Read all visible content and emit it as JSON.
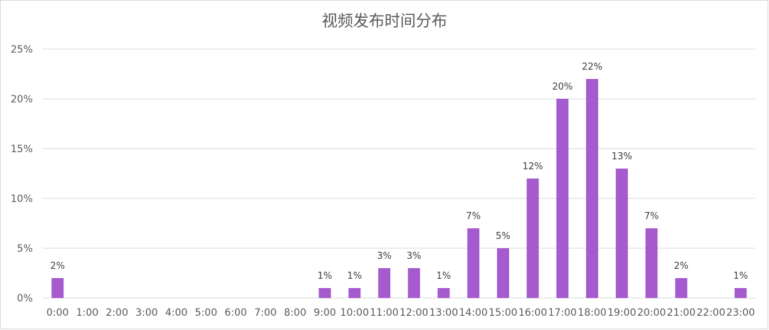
{
  "chart_data": {
    "type": "bar",
    "title": "视频发布时间分布",
    "xlabel": "",
    "ylabel": "",
    "categories": [
      "0:00",
      "1:00",
      "2:00",
      "3:00",
      "4:00",
      "5:00",
      "6:00",
      "7:00",
      "8:00",
      "9:00",
      "10:00",
      "11:00",
      "12:00",
      "13:00",
      "14:00",
      "15:00",
      "16:00",
      "17:00",
      "18:00",
      "19:00",
      "20:00",
      "21:00",
      "22:00",
      "23:00"
    ],
    "values": [
      2,
      0,
      0,
      0,
      0,
      0,
      0,
      0,
      0,
      1,
      1,
      3,
      3,
      1,
      7,
      5,
      12,
      20,
      22,
      13,
      7,
      2,
      0,
      1
    ],
    "data_labels": [
      "2%",
      "",
      "",
      "",
      "",
      "",
      "",
      "",
      "",
      "1%",
      "1%",
      "3%",
      "3%",
      "1%",
      "7%",
      "5%",
      "12%",
      "20%",
      "22%",
      "13%",
      "7%",
      "2%",
      "",
      "1%"
    ],
    "ylim": [
      0,
      25
    ],
    "yticks": [
      "0%",
      "5%",
      "10%",
      "15%",
      "20%",
      "25%"
    ],
    "grid": true,
    "bar_color": "#a55bce",
    "grid_color": "#d9d9d9",
    "legend": "none"
  }
}
